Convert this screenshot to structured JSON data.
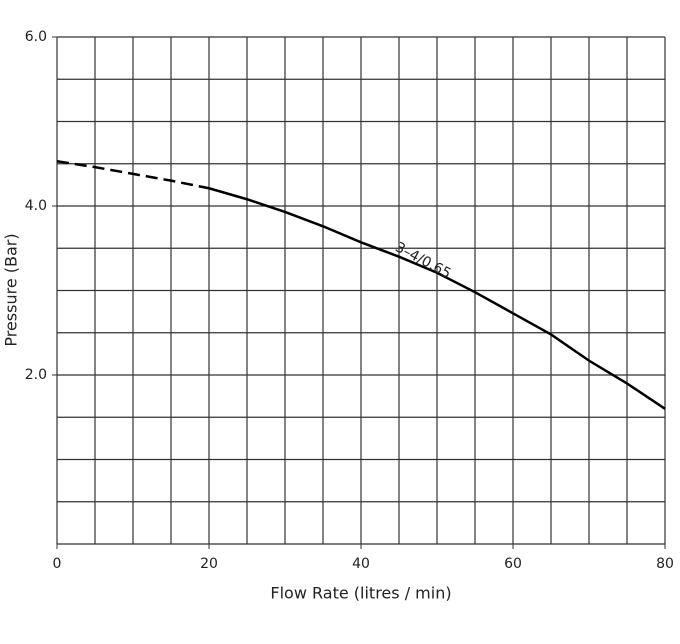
{
  "chart_data": {
    "type": "line",
    "x_label": "Flow Rate (litres / min)",
    "y_label": "Pressure (Bar)",
    "x": [
      0,
      5,
      10,
      15,
      20,
      25,
      30,
      35,
      40,
      45,
      50,
      55,
      60,
      65,
      70,
      75,
      80
    ],
    "series": [
      {
        "color": "#000000",
        "dashed": true,
        "values": [
          4.53,
          4.46,
          4.38,
          4.3,
          4.21,
          null,
          null,
          null,
          null,
          null,
          null,
          null,
          null,
          null,
          null,
          null,
          null
        ]
      },
      {
        "name": "3–4/0.65",
        "color": "#000000",
        "dashed": false,
        "values": [
          null,
          null,
          null,
          null,
          4.21,
          4.08,
          3.93,
          3.76,
          3.57,
          3.4,
          3.21,
          2.98,
          2.73,
          2.48,
          2.17,
          1.9,
          1.6
        ]
      }
    ],
    "xlim": [
      0,
      80
    ],
    "ylim": [
      0,
      6
    ],
    "xticks": [
      0,
      20,
      40,
      60,
      80
    ],
    "yticks": [
      {
        "value": 2,
        "label": "2.0"
      },
      {
        "value": 4,
        "label": "4.0"
      },
      {
        "value": 6,
        "label": "6.0"
      }
    ],
    "xgrid": [
      0,
      5,
      10,
      15,
      20,
      25,
      30,
      35,
      40,
      45,
      50,
      55,
      60,
      65,
      70,
      75,
      80
    ],
    "ygrid": [
      0,
      0.5,
      1,
      1.5,
      2,
      2.5,
      3,
      3.5,
      4,
      4.5,
      5,
      5.5,
      6
    ],
    "grid": true
  }
}
